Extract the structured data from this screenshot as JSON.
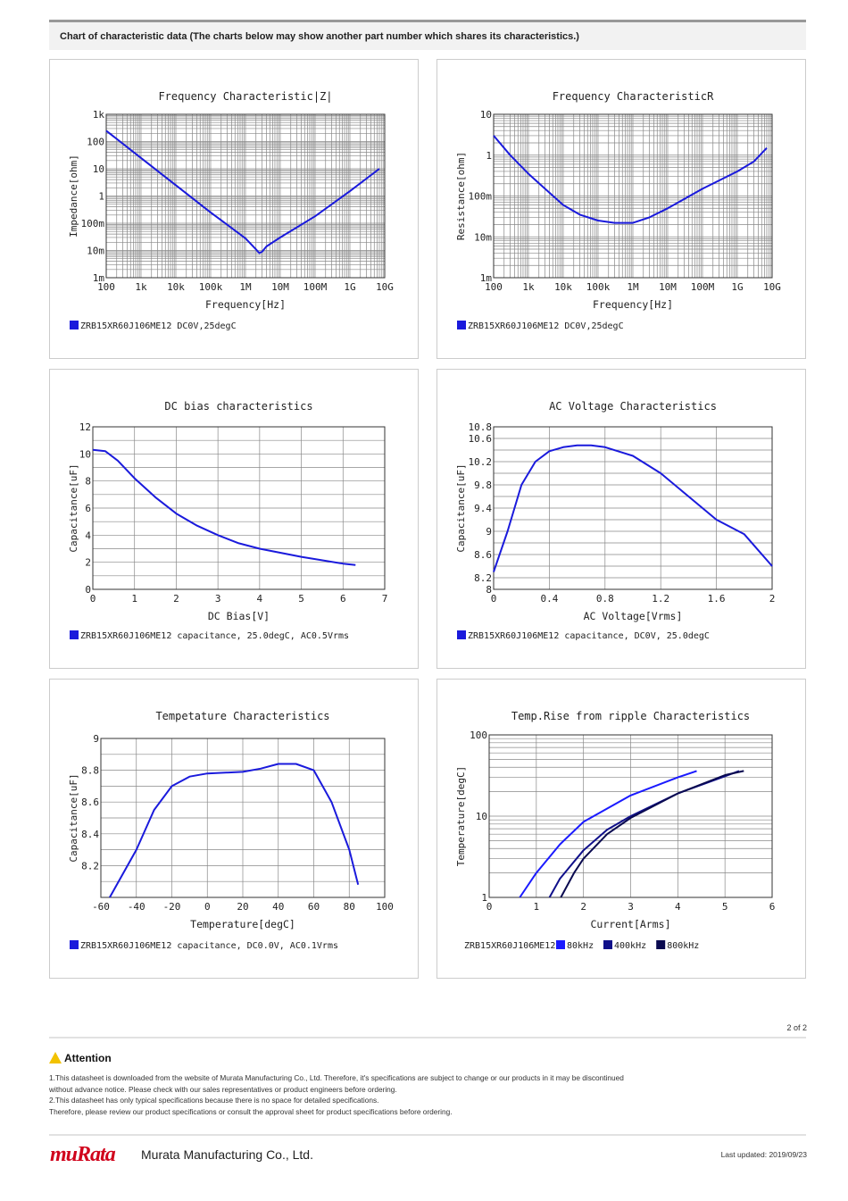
{
  "header": {
    "text": "Chart of characteristic data (The charts below may show another part number which shares its characteristics.)"
  },
  "chart_data": [
    {
      "type": "line",
      "title": "Frequency  Characteristic|Z|",
      "xlabel": "Frequency[Hz]",
      "ylabel": "Impedance[ohm]",
      "xscale": "log",
      "yscale": "log",
      "xlim": [
        100,
        10000000000.0
      ],
      "ylim": [
        0.001,
        1000
      ],
      "xticks": [
        [
          100,
          "100"
        ],
        [
          1000,
          "1k"
        ],
        [
          10000,
          "10k"
        ],
        [
          100000,
          "100k"
        ],
        [
          1000000.0,
          "1M"
        ],
        [
          10000000.0,
          "10M"
        ],
        [
          100000000.0,
          "100M"
        ],
        [
          1000000000.0,
          "1G"
        ],
        [
          10000000000.0,
          "10G"
        ]
      ],
      "yticks": [
        [
          1000,
          "1k"
        ],
        [
          100,
          "100"
        ],
        [
          10,
          "10"
        ],
        [
          1,
          "1"
        ],
        [
          0.1,
          "100m"
        ],
        [
          0.01,
          "10m"
        ],
        [
          0.001,
          "1m"
        ]
      ],
      "legend": [
        "ZRB15XR60J106ME12 DC0V,25degC"
      ],
      "series": [
        {
          "name": "ZRB15XR60J106ME12 DC0V,25degC",
          "color": "#1a1adc",
          "points": [
            [
              100,
              250
            ],
            [
              1000,
              25
            ],
            [
              10000,
              2.5
            ],
            [
              100000,
              0.25
            ],
            [
              1000000.0,
              0.028
            ],
            [
              2000000.0,
              0.011
            ],
            [
              2500000.0,
              0.008
            ],
            [
              3000000.0,
              0.009
            ],
            [
              4000000.0,
              0.014
            ],
            [
              10000000.0,
              0.03
            ],
            [
              100000000.0,
              0.18
            ],
            [
              1000000000.0,
              1.5
            ],
            [
              7000000000.0,
              10
            ]
          ]
        }
      ]
    },
    {
      "type": "line",
      "title": "Frequency  CharacteristicR",
      "xlabel": "Frequency[Hz]",
      "ylabel": "Resistance[ohm]",
      "xscale": "log",
      "yscale": "log",
      "xlim": [
        100,
        10000000000.0
      ],
      "ylim": [
        0.001,
        10
      ],
      "xticks": [
        [
          100,
          "100"
        ],
        [
          1000,
          "1k"
        ],
        [
          10000,
          "10k"
        ],
        [
          100000,
          "100k"
        ],
        [
          1000000.0,
          "1M"
        ],
        [
          10000000.0,
          "10M"
        ],
        [
          100000000.0,
          "100M"
        ],
        [
          1000000000.0,
          "1G"
        ],
        [
          10000000000.0,
          "10G"
        ]
      ],
      "yticks": [
        [
          10,
          "10"
        ],
        [
          1,
          "1"
        ],
        [
          0.1,
          "100m"
        ],
        [
          0.01,
          "10m"
        ],
        [
          0.001,
          "1m"
        ]
      ],
      "legend": [
        "ZRB15XR60J106ME12 DC0V,25degC"
      ],
      "series": [
        {
          "name": "ZRB15XR60J106ME12 DC0V,25degC",
          "color": "#1a1adc",
          "points": [
            [
              100,
              3
            ],
            [
              300,
              1
            ],
            [
              1000,
              0.35
            ],
            [
              3000,
              0.15
            ],
            [
              10000,
              0.06
            ],
            [
              30000,
              0.035
            ],
            [
              100000,
              0.025
            ],
            [
              300000,
              0.022
            ],
            [
              1000000.0,
              0.022
            ],
            [
              3000000.0,
              0.03
            ],
            [
              10000000.0,
              0.05
            ],
            [
              100000000.0,
              0.15
            ],
            [
              1000000000.0,
              0.4
            ],
            [
              3000000000.0,
              0.7
            ],
            [
              7000000000.0,
              1.5
            ]
          ]
        }
      ]
    },
    {
      "type": "line",
      "title": "DC bias characteristics",
      "xlabel": "DC Bias[V]",
      "ylabel": "Capacitance[uF]",
      "xscale": "linear",
      "yscale": "linear",
      "xlim": [
        0,
        7
      ],
      "ylim": [
        0,
        12
      ],
      "xticks": [
        [
          0,
          "0"
        ],
        [
          1,
          "1"
        ],
        [
          2,
          "2"
        ],
        [
          3,
          "3"
        ],
        [
          4,
          "4"
        ],
        [
          5,
          "5"
        ],
        [
          6,
          "6"
        ],
        [
          7,
          "7"
        ]
      ],
      "yticks": [
        [
          0,
          "0"
        ],
        [
          2,
          "2"
        ],
        [
          4,
          "4"
        ],
        [
          6,
          "6"
        ],
        [
          8,
          "8"
        ],
        [
          10,
          "10"
        ],
        [
          12,
          "12"
        ]
      ],
      "legend": [
        "ZRB15XR60J106ME12 capacitance, 25.0degC, AC0.5Vrms"
      ],
      "series": [
        {
          "name": "ZRB15XR60J106ME12 capacitance, 25.0degC, AC0.5Vrms",
          "color": "#1a1adc",
          "points": [
            [
              0,
              10.3
            ],
            [
              0.3,
              10.2
            ],
            [
              0.6,
              9.5
            ],
            [
              1,
              8.2
            ],
            [
              1.5,
              6.8
            ],
            [
              2,
              5.6
            ],
            [
              2.5,
              4.7
            ],
            [
              3,
              4.0
            ],
            [
              3.5,
              3.4
            ],
            [
              4,
              3.0
            ],
            [
              5,
              2.4
            ],
            [
              6,
              1.9
            ],
            [
              6.3,
              1.8
            ]
          ]
        }
      ]
    },
    {
      "type": "line",
      "title": "AC Voltage Characteristics",
      "xlabel": "AC Voltage[Vrms]",
      "ylabel": "Capacitance[uF]",
      "xscale": "linear",
      "yscale": "linear",
      "xlim": [
        0,
        2
      ],
      "ylim": [
        8,
        10.8
      ],
      "xticks": [
        [
          0,
          "0"
        ],
        [
          0.4,
          "0.4"
        ],
        [
          0.8,
          "0.8"
        ],
        [
          1.2,
          "1.2"
        ],
        [
          1.6,
          "1.6"
        ],
        [
          2,
          "2"
        ]
      ],
      "yticks": [
        [
          8,
          "8"
        ],
        [
          8.2,
          "8.2"
        ],
        [
          8.6,
          "8.6"
        ],
        [
          9,
          "9"
        ],
        [
          9.4,
          "9.4"
        ],
        [
          9.8,
          "9.8"
        ],
        [
          10.2,
          "10.2"
        ],
        [
          10.6,
          "10.6"
        ],
        [
          10.8,
          "10.8"
        ]
      ],
      "legend": [
        "ZRB15XR60J106ME12 capacitance, DC0V, 25.0degC"
      ],
      "series": [
        {
          "name": "ZRB15XR60J106ME12 capacitance, DC0V, 25.0degC",
          "color": "#1a1adc",
          "points": [
            [
              0,
              8.3
            ],
            [
              0.1,
              9.0
            ],
            [
              0.2,
              9.8
            ],
            [
              0.3,
              10.2
            ],
            [
              0.4,
              10.38
            ],
            [
              0.5,
              10.45
            ],
            [
              0.6,
              10.48
            ],
            [
              0.7,
              10.48
            ],
            [
              0.8,
              10.45
            ],
            [
              1.0,
              10.3
            ],
            [
              1.2,
              10.0
            ],
            [
              1.4,
              9.6
            ],
            [
              1.6,
              9.2
            ],
            [
              1.8,
              8.95
            ],
            [
              2.0,
              8.4
            ]
          ]
        }
      ]
    },
    {
      "type": "line",
      "title": "Tempetature  Characteristics",
      "xlabel": "Temperature[degC]",
      "ylabel": "Capacitance[uF]",
      "xscale": "linear",
      "yscale": "linear",
      "xlim": [
        -60,
        100
      ],
      "ylim": [
        8.0,
        9.0
      ],
      "xticks": [
        [
          -60,
          "-60"
        ],
        [
          -40,
          "-40"
        ],
        [
          -20,
          "-20"
        ],
        [
          0,
          "0"
        ],
        [
          20,
          "20"
        ],
        [
          40,
          "40"
        ],
        [
          60,
          "60"
        ],
        [
          80,
          "80"
        ],
        [
          100,
          "100"
        ]
      ],
      "yticks": [
        [
          8.2,
          "8.2"
        ],
        [
          8.4,
          "8.4"
        ],
        [
          8.6,
          "8.6"
        ],
        [
          8.8,
          "8.8"
        ],
        [
          9,
          "9"
        ]
      ],
      "legend": [
        "ZRB15XR60J106ME12 capacitance, DC0.0V, AC0.1Vrms"
      ],
      "series": [
        {
          "name": "ZRB15XR60J106ME12 capacitance, DC0.0V, AC0.1Vrms",
          "color": "#1a1adc",
          "points": [
            [
              -55,
              8.0
            ],
            [
              -40,
              8.3
            ],
            [
              -30,
              8.55
            ],
            [
              -20,
              8.7
            ],
            [
              -10,
              8.76
            ],
            [
              0,
              8.78
            ],
            [
              20,
              8.79
            ],
            [
              30,
              8.81
            ],
            [
              40,
              8.84
            ],
            [
              50,
              8.84
            ],
            [
              60,
              8.8
            ],
            [
              70,
              8.6
            ],
            [
              80,
              8.3
            ],
            [
              85,
              8.08
            ]
          ]
        }
      ]
    },
    {
      "type": "line",
      "title": "Temp.Rise from ripple Characteristics",
      "xlabel": "Current[Arms]",
      "ylabel": "Temperature[degC]",
      "xscale": "linear",
      "yscale": "log",
      "xlim": [
        0,
        6
      ],
      "ylim": [
        1,
        100
      ],
      "xticks": [
        [
          0,
          "0"
        ],
        [
          1,
          "1"
        ],
        [
          2,
          "2"
        ],
        [
          3,
          "3"
        ],
        [
          4,
          "4"
        ],
        [
          5,
          "5"
        ],
        [
          6,
          "6"
        ]
      ],
      "yticks": [
        [
          1,
          "1"
        ],
        [
          10,
          "10"
        ],
        [
          100,
          "100"
        ]
      ],
      "legend_prefix": "ZRB15XR60J106ME12",
      "legend": [
        "80kHz",
        "400kHz",
        "800kHz"
      ],
      "series": [
        {
          "name": "80kHz",
          "color": "#1a1aff",
          "points": [
            [
              0.65,
              1
            ],
            [
              1,
              2
            ],
            [
              1.5,
              4.5
            ],
            [
              2,
              8.5
            ],
            [
              3,
              18
            ],
            [
              4,
              30
            ],
            [
              4.4,
              36
            ]
          ]
        },
        {
          "name": "400kHz",
          "color": "#10108a",
          "points": [
            [
              1.28,
              1
            ],
            [
              1.5,
              1.7
            ],
            [
              2,
              3.8
            ],
            [
              2.5,
              6.8
            ],
            [
              3,
              10
            ],
            [
              4,
              19
            ],
            [
              5,
              31
            ],
            [
              5.3,
              36
            ]
          ]
        },
        {
          "name": "800kHz",
          "color": "#0a0a50",
          "points": [
            [
              1.52,
              1
            ],
            [
              1.8,
              2
            ],
            [
              2,
              3
            ],
            [
              2.5,
              6
            ],
            [
              3,
              9.5
            ],
            [
              4,
              19
            ],
            [
              5,
              32
            ],
            [
              5.4,
              36
            ]
          ]
        }
      ]
    }
  ],
  "page_number": "2 of 2",
  "attention": {
    "title": "Attention",
    "lines": [
      "1.This datasheet is downloaded from the website of Murata Manufacturing Co., Ltd. Therefore, it's specifications are subject to change or our products in it may be discontinued",
      "without advance notice. Please check with our sales representatives or product engineers before ordering.",
      "2.This datasheet has only typical specifications because there is no space for detailed specifications.",
      "Therefore, please review our product specifications or consult the approval sheet for product specifications before ordering."
    ]
  },
  "footer": {
    "logo": "muRata",
    "company": "Murata Manufacturing Co., Ltd.",
    "updated": "Last updated: 2019/09/23"
  }
}
